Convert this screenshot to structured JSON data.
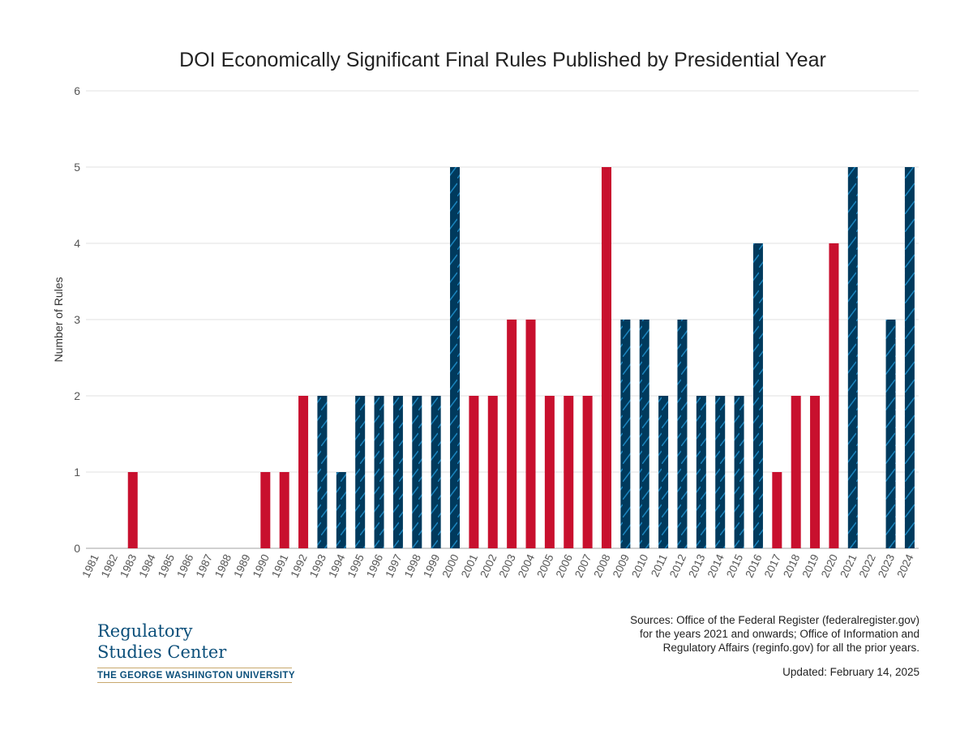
{
  "chart_data": {
    "type": "bar",
    "title": "DOI Economically Significant Final Rules Published by Presidential Year",
    "xlabel": "",
    "ylabel": "Number of Rules",
    "ylim": [
      0,
      6
    ],
    "yticks": [
      0,
      1,
      2,
      3,
      4,
      5,
      6
    ],
    "grid": true,
    "legend": "none",
    "categories": [
      "1981",
      "1982",
      "1983",
      "1984",
      "1985",
      "1986",
      "1987",
      "1988",
      "1989",
      "1990",
      "1991",
      "1992",
      "1993",
      "1994",
      "1995",
      "1996",
      "1997",
      "1998",
      "1999",
      "2000",
      "2001",
      "2002",
      "2003",
      "2004",
      "2005",
      "2006",
      "2007",
      "2008",
      "2009",
      "2010",
      "2011",
      "2012",
      "2013",
      "2014",
      "2015",
      "2016",
      "2017",
      "2018",
      "2019",
      "2020",
      "2021",
      "2022",
      "2023",
      "2024"
    ],
    "values": [
      0,
      0,
      1,
      0,
      0,
      0,
      0,
      0,
      0,
      1,
      1,
      2,
      2,
      1,
      2,
      2,
      2,
      2,
      2,
      5,
      2,
      2,
      3,
      3,
      2,
      2,
      2,
      5,
      3,
      3,
      2,
      3,
      2,
      2,
      2,
      4,
      1,
      2,
      2,
      4,
      5,
      0,
      3,
      5
    ],
    "bar_party": [
      "R",
      "R",
      "R",
      "R",
      "R",
      "R",
      "R",
      "R",
      "R",
      "R",
      "R",
      "R",
      "D",
      "D",
      "D",
      "D",
      "D",
      "D",
      "D",
      "D",
      "R",
      "R",
      "R",
      "R",
      "R",
      "R",
      "R",
      "R",
      "D",
      "D",
      "D",
      "D",
      "D",
      "D",
      "D",
      "D",
      "R",
      "R",
      "R",
      "R",
      "D",
      "D",
      "D",
      "D"
    ],
    "colors": {
      "R": "#c8102e",
      "D": "#003a5d",
      "D_hatch": "#1b84bd"
    }
  },
  "footer": {
    "sources": [
      "Sources: Office of the Federal Register (federalregister.gov)",
      "for the years 2021 and onwards; Office of Information and",
      "Regulatory Affairs (reginfo.gov) for all the prior years."
    ],
    "updated": "Updated: February 14, 2025"
  },
  "logo": {
    "line1": "Regulatory",
    "line2": "Studies Center",
    "line3": "THE GEORGE WASHINGTON UNIVERSITY"
  }
}
